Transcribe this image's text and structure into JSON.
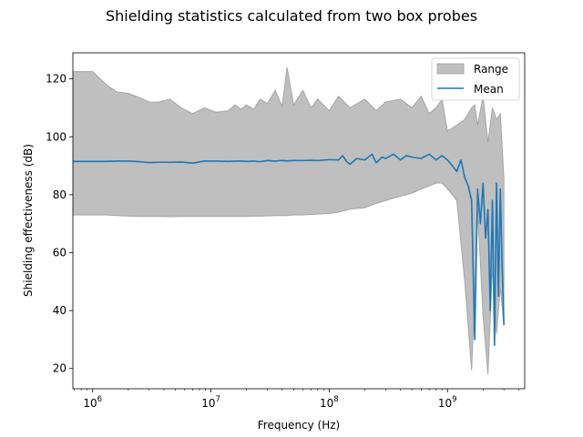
{
  "chart_data": {
    "type": "area",
    "title": "Shielding statistics calculated from two box probes",
    "xlabel": "Frequency (Hz)",
    "ylabel": "Shielding effectiveness (dB)",
    "xscale": "log",
    "xlim": [
      680000,
      4500000000
    ],
    "ylim": [
      13,
      129
    ],
    "x_ticks": [
      {
        "value": 1000000,
        "base": "10",
        "exp": "6"
      },
      {
        "value": 10000000,
        "base": "10",
        "exp": "7"
      },
      {
        "value": 100000000,
        "base": "10",
        "exp": "8"
      },
      {
        "value": 1000000000,
        "base": "10",
        "exp": "9"
      }
    ],
    "y_ticks": [
      20,
      40,
      60,
      80,
      100,
      120
    ],
    "grid": false,
    "legend": {
      "placement": "top-right",
      "entries": [
        "Range",
        "Mean"
      ]
    },
    "colors": {
      "range_fill": "#bfbfbf",
      "range_edge": "#a6a6a6",
      "mean": "#1f77b4"
    },
    "series": [
      {
        "name": "Range",
        "kind": "band",
        "x": [
          680000,
          1000000,
          1300000,
          1600000,
          2000000,
          2500000,
          3000000,
          3600000,
          4500000,
          5600000,
          7000000,
          8800000,
          11000000,
          14000000,
          16000000,
          18000000,
          20000000,
          23000000,
          26000000,
          30000000,
          35000000,
          40000000,
          44000000,
          50000000,
          60000000,
          70000000,
          80000000,
          100000000,
          120000000,
          150000000,
          200000000,
          250000000,
          300000000,
          400000000,
          500000000,
          600000000,
          700000000,
          800000000,
          900000000,
          1000000000,
          1200000000,
          1400000000,
          1600000000,
          1700000000,
          1800000000,
          2000000000,
          2200000000,
          2400000000,
          2600000000,
          2800000000,
          3000000000
        ],
        "upper": [
          122.5,
          122.5,
          118,
          115.5,
          115,
          113.5,
          112,
          112,
          113,
          110,
          108,
          110,
          108.5,
          109,
          111,
          109.5,
          111,
          109.5,
          113,
          111.5,
          116,
          110.5,
          124,
          111,
          116,
          110,
          113,
          109,
          114,
          110,
          113,
          109,
          112,
          113,
          110,
          114,
          108,
          110,
          113,
          102,
          104,
          106,
          110,
          111,
          104,
          114,
          98,
          110,
          106,
          108,
          86
        ],
        "lower": [
          73,
          73,
          73,
          72.8,
          72.6,
          72.5,
          72.5,
          72.5,
          72.4,
          72.5,
          72.5,
          72.5,
          72.5,
          72.5,
          72.5,
          72.5,
          72.5,
          72.6,
          72.6,
          72.7,
          72.8,
          72.8,
          72.8,
          73,
          73,
          73.2,
          73.3,
          73.5,
          74,
          75,
          75.5,
          77,
          78,
          79.5,
          80.5,
          82,
          83,
          84,
          84,
          82,
          78,
          50,
          19.5,
          45,
          75,
          38,
          18,
          55,
          32,
          48,
          35
        ]
      },
      {
        "name": "Mean",
        "kind": "line",
        "x": [
          680000,
          1000000,
          1300000,
          1600000,
          2000000,
          2500000,
          3000000,
          3600000,
          4500000,
          5600000,
          7000000,
          8800000,
          11000000,
          14000000,
          16000000,
          18000000,
          20000000,
          23000000,
          26000000,
          30000000,
          35000000,
          40000000,
          44000000,
          50000000,
          60000000,
          70000000,
          80000000,
          100000000,
          120000000,
          130000000,
          140000000,
          150000000,
          170000000,
          200000000,
          230000000,
          250000000,
          280000000,
          300000000,
          350000000,
          400000000,
          450000000,
          500000000,
          600000000,
          700000000,
          800000000,
          900000000,
          1000000000,
          1100000000,
          1200000000,
          1300000000,
          1400000000,
          1500000000,
          1600000000,
          1700000000,
          1800000000,
          1900000000,
          2000000000,
          2100000000,
          2200000000,
          2300000000,
          2400000000,
          2500000000,
          2600000000,
          2700000000,
          2800000000,
          2900000000,
          3000000000
        ],
        "y": [
          91.5,
          91.5,
          91.5,
          91.6,
          91.6,
          91.4,
          91.1,
          91.2,
          91.2,
          91.3,
          90.9,
          91.6,
          91.6,
          91.5,
          91.6,
          91.6,
          91.5,
          91.6,
          91.4,
          91.8,
          91.6,
          91.8,
          91.7,
          91.8,
          91.8,
          91.9,
          91.8,
          92.1,
          92,
          93.5,
          91.5,
          90.5,
          92.5,
          92,
          94,
          91,
          93,
          92.5,
          94,
          92,
          93.5,
          93,
          92.5,
          94,
          92,
          93.5,
          92,
          90,
          88,
          92,
          86,
          83,
          78,
          30,
          82,
          70,
          84,
          65,
          75,
          40,
          78,
          28,
          84,
          45,
          82,
          55,
          35
        ]
      }
    ]
  }
}
